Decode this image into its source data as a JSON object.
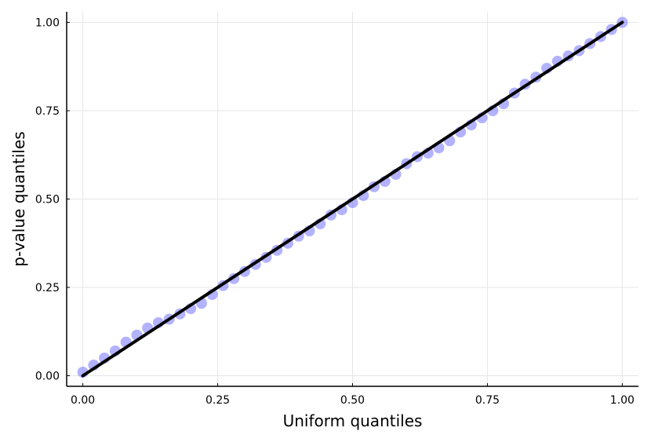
{
  "chart_data": {
    "type": "scatter",
    "xlabel": "Uniform quantiles",
    "ylabel": "p-value quantiles",
    "xlim": [
      -0.03,
      1.03
    ],
    "ylim": [
      -0.03,
      1.03
    ],
    "x_ticks": [
      0.0,
      0.25,
      0.5,
      0.75,
      1.0
    ],
    "x_tick_labels": [
      "0.00",
      "0.25",
      "0.50",
      "0.75",
      "1.00"
    ],
    "y_ticks": [
      0.0,
      0.25,
      0.5,
      0.75,
      1.0
    ],
    "y_tick_labels": [
      "0.00",
      "0.25",
      "0.50",
      "0.75",
      "1.00"
    ],
    "grid": true,
    "legend": "none",
    "series": [
      {
        "kind": "scatter",
        "color": "#5555ff",
        "x": [
          0.0,
          0.02,
          0.04,
          0.06,
          0.08,
          0.1,
          0.12,
          0.14,
          0.16,
          0.18,
          0.2,
          0.22,
          0.24,
          0.26,
          0.28,
          0.3,
          0.32,
          0.34,
          0.36,
          0.38,
          0.4,
          0.42,
          0.44,
          0.46,
          0.48,
          0.5,
          0.52,
          0.54,
          0.56,
          0.58,
          0.6,
          0.62,
          0.64,
          0.66,
          0.68,
          0.7,
          0.72,
          0.74,
          0.76,
          0.78,
          0.8,
          0.82,
          0.84,
          0.86,
          0.88,
          0.9,
          0.92,
          0.94,
          0.96,
          0.98,
          1.0
        ],
        "y": [
          0.01,
          0.03,
          0.05,
          0.07,
          0.095,
          0.115,
          0.135,
          0.15,
          0.16,
          0.175,
          0.19,
          0.205,
          0.23,
          0.255,
          0.275,
          0.295,
          0.315,
          0.335,
          0.355,
          0.375,
          0.395,
          0.41,
          0.43,
          0.455,
          0.47,
          0.49,
          0.51,
          0.535,
          0.55,
          0.57,
          0.6,
          0.62,
          0.63,
          0.645,
          0.665,
          0.69,
          0.71,
          0.73,
          0.75,
          0.77,
          0.8,
          0.825,
          0.845,
          0.87,
          0.89,
          0.905,
          0.92,
          0.94,
          0.96,
          0.98,
          1.0
        ]
      },
      {
        "kind": "line",
        "color": "#000000",
        "x": [
          0.0,
          1.0
        ],
        "y": [
          0.0,
          1.0
        ]
      }
    ]
  }
}
